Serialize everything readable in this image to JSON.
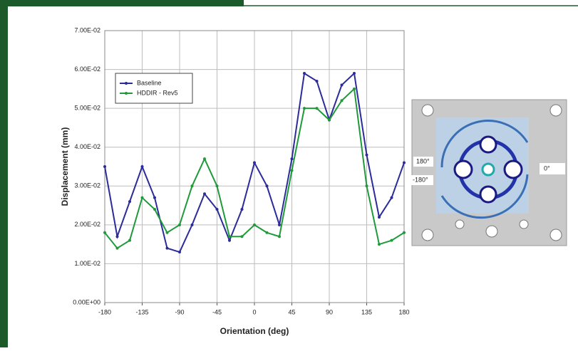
{
  "chart_data": {
    "type": "line",
    "x_label": "Orientation (deg)",
    "y_label": "Displacement (mm)",
    "x": [
      -180,
      -165,
      -150,
      -135,
      -120,
      -105,
      -90,
      -75,
      -60,
      -45,
      -30,
      -15,
      0,
      15,
      30,
      45,
      60,
      75,
      90,
      105,
      120,
      135,
      150,
      165,
      180
    ],
    "series": [
      {
        "name": "Baseline",
        "color": "#2b2b9a",
        "values": [
          0.035,
          0.017,
          0.026,
          0.035,
          0.027,
          0.014,
          0.013,
          0.02,
          0.028,
          0.024,
          0.016,
          0.024,
          0.036,
          0.03,
          0.02,
          0.037,
          0.059,
          0.057,
          0.047,
          0.056,
          0.059,
          0.038,
          0.022,
          0.027,
          0.036
        ]
      },
      {
        "name": "HDDIR - Rev5",
        "color": "#1f9a3a",
        "values": [
          0.018,
          0.014,
          0.016,
          0.027,
          0.024,
          0.018,
          0.02,
          0.03,
          0.037,
          0.03,
          0.017,
          0.017,
          0.02,
          0.018,
          0.017,
          0.034,
          0.05,
          0.05,
          0.047,
          0.052,
          0.055,
          0.03,
          0.015,
          0.016,
          0.018
        ]
      }
    ],
    "xlim": [
      -180,
      180
    ],
    "xticks": [
      -180,
      -135,
      -90,
      -45,
      0,
      45,
      90,
      135,
      180
    ],
    "ylim": [
      0,
      0.07
    ],
    "yticks": [
      {
        "value": 0,
        "label": "0.00E+00"
      },
      {
        "value": 0.01,
        "label": "1.00E-02"
      },
      {
        "value": 0.02,
        "label": "2.00E-02"
      },
      {
        "value": 0.03,
        "label": "3.00E-02"
      },
      {
        "value": 0.04,
        "label": "4.00E-02"
      },
      {
        "value": 0.05,
        "label": "5.00E-02"
      },
      {
        "value": 0.06,
        "label": "6.00E-02"
      },
      {
        "value": 0.07,
        "label": "7.00E-02"
      }
    ],
    "grid": true,
    "legend": "upper-left"
  },
  "inset": {
    "labels": [
      "180°",
      "-180°",
      "0°"
    ]
  }
}
